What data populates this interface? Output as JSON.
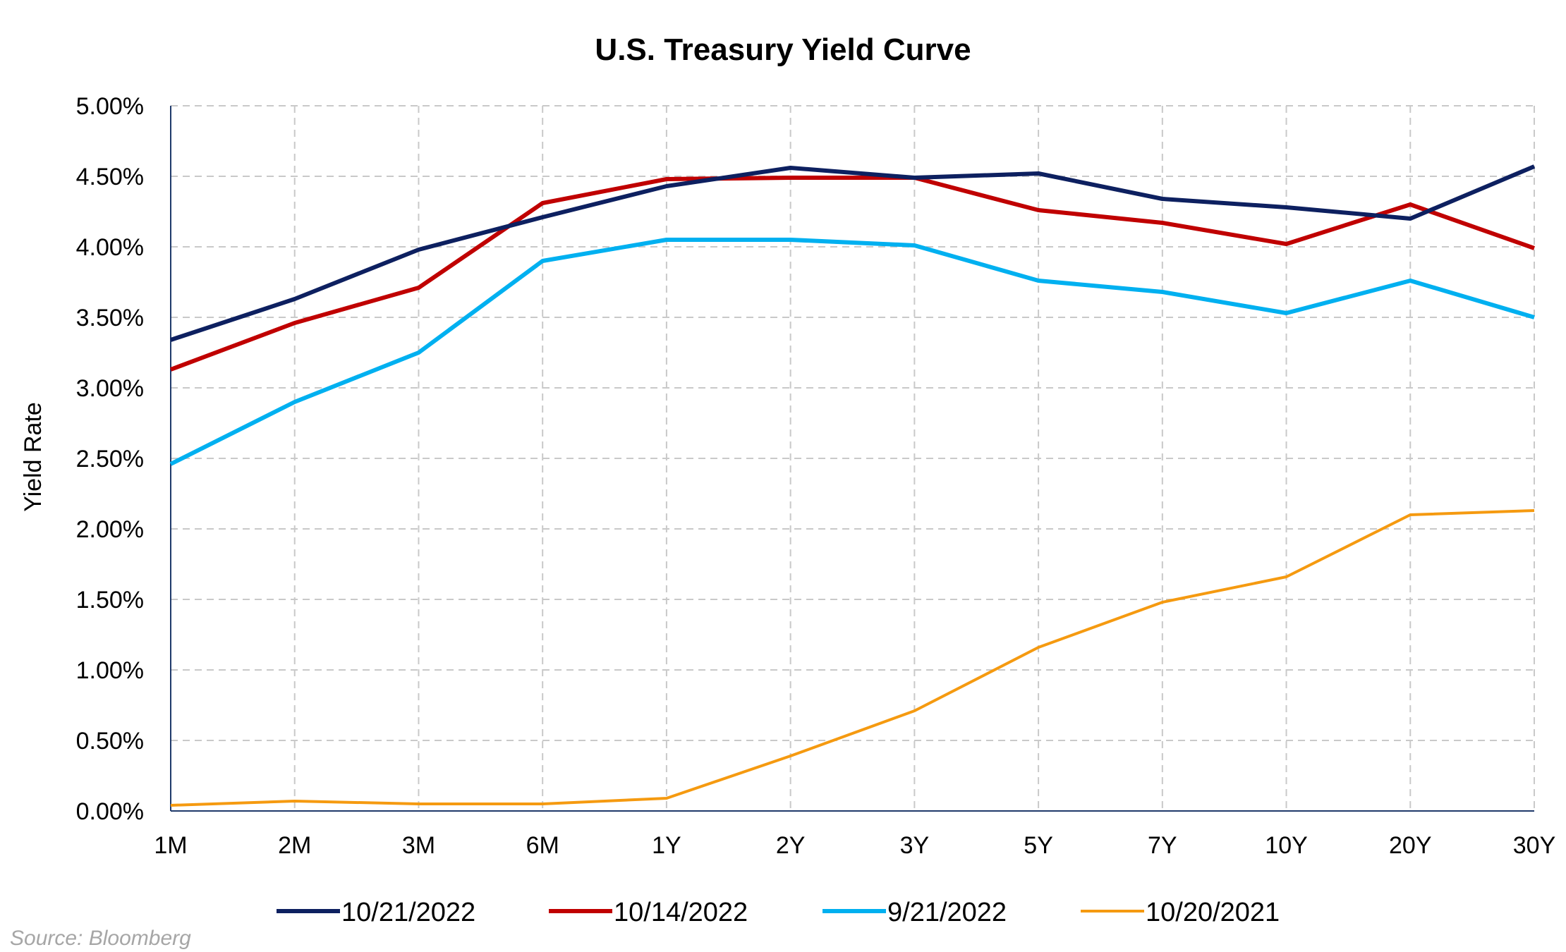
{
  "chart_data": {
    "type": "line",
    "title": "U.S. Treasury Yield Curve",
    "xlabel": "",
    "ylabel": "Yield Rate",
    "categories": [
      "1M",
      "2M",
      "3M",
      "6M",
      "1Y",
      "2Y",
      "3Y",
      "5Y",
      "7Y",
      "10Y",
      "20Y",
      "30Y"
    ],
    "ylim": [
      0,
      5
    ],
    "yticks": [
      "0.00%",
      "0.50%",
      "1.00%",
      "1.50%",
      "2.00%",
      "2.50%",
      "3.00%",
      "3.50%",
      "4.00%",
      "4.50%",
      "5.00%"
    ],
    "grid": true,
    "legend_position": "bottom",
    "series": [
      {
        "name": "10/21/2022",
        "color": "#0d2060",
        "values": [
          3.34,
          3.63,
          3.98,
          4.21,
          4.43,
          4.56,
          4.49,
          4.52,
          4.34,
          4.28,
          4.2,
          4.57
        ]
      },
      {
        "name": "10/14/2022",
        "color": "#c00000",
        "values": [
          3.13,
          3.46,
          3.71,
          4.31,
          4.48,
          4.49,
          4.49,
          4.26,
          4.17,
          4.02,
          4.3,
          3.99
        ]
      },
      {
        "name": "9/21/2022",
        "color": "#00b0f0",
        "values": [
          2.46,
          2.9,
          3.25,
          3.9,
          4.05,
          4.05,
          4.01,
          3.76,
          3.68,
          3.53,
          3.76,
          3.5
        ]
      },
      {
        "name": "10/20/2021",
        "color": "#f59a10",
        "values": [
          0.04,
          0.07,
          0.05,
          0.05,
          0.09,
          0.39,
          0.71,
          1.16,
          1.48,
          1.66,
          2.1,
          2.13
        ]
      }
    ]
  },
  "source": "Source: Bloomberg"
}
